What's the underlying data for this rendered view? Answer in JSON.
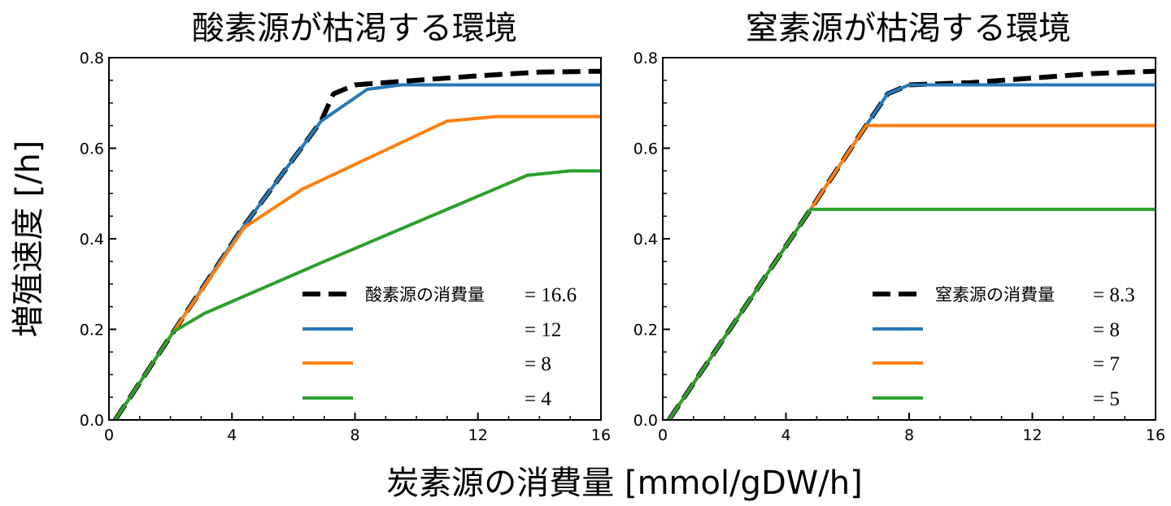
{
  "chart_data": [
    {
      "type": "line",
      "title": "酸素源が枯渇する環境",
      "xlabel": "炭素源の消費量 [mmol/gDW/h]",
      "ylabel": "増殖速度 [/h]",
      "xlim": [
        0,
        16
      ],
      "ylim": [
        0,
        0.8
      ],
      "xticks": [
        0,
        4,
        8,
        12,
        16
      ],
      "xtick_labels": [
        "0",
        "4",
        "8",
        "12",
        "16"
      ],
      "xminor_step": 1,
      "yticks": [
        0.0,
        0.2,
        0.4,
        0.6,
        0.8
      ],
      "ytick_labels": [
        "0.0",
        "0.2",
        "0.4",
        "0.6",
        "0.8"
      ],
      "yminor_step": 0.05,
      "grid": false,
      "legend_position": "bottom-right",
      "series": [
        {
          "name": "酸素源の消費量",
          "value_label": "= 16.6",
          "color": "#000000",
          "style": "dashed",
          "x": [
            0.2,
            2.1,
            4.3,
            6.9,
            7.3,
            8.0,
            10.0,
            12.0,
            14.0,
            16.0
          ],
          "y": [
            0.0,
            0.195,
            0.42,
            0.66,
            0.72,
            0.74,
            0.75,
            0.76,
            0.768,
            0.77
          ]
        },
        {
          "name": "",
          "value_label": "= 12",
          "color": "#2878b5",
          "style": "solid",
          "x": [
            0.2,
            2.1,
            4.3,
            6.9,
            8.4,
            9.5,
            16.0
          ],
          "y": [
            0.0,
            0.195,
            0.42,
            0.66,
            0.73,
            0.74,
            0.74
          ]
        },
        {
          "name": "",
          "value_label": "= 8",
          "color": "#ff7f0e",
          "style": "solid",
          "x": [
            0.2,
            2.1,
            4.4,
            6.3,
            11.0,
            12.6,
            16.0
          ],
          "y": [
            0.0,
            0.195,
            0.425,
            0.51,
            0.66,
            0.67,
            0.67
          ]
        },
        {
          "name": "",
          "value_label": "= 4",
          "color": "#2ca02c",
          "style": "solid",
          "x": [
            0.2,
            2.1,
            3.1,
            7.0,
            13.6,
            15.0,
            16.0
          ],
          "y": [
            0.0,
            0.195,
            0.235,
            0.35,
            0.54,
            0.55,
            0.55
          ]
        }
      ]
    },
    {
      "type": "line",
      "title": "窒素源が枯渇する環境",
      "xlabel": "炭素源の消費量 [mmol/gDW/h]",
      "ylabel": "増殖速度 [/h]",
      "xlim": [
        0,
        16
      ],
      "ylim": [
        0,
        0.8
      ],
      "xticks": [
        0,
        4,
        8,
        12,
        16
      ],
      "xtick_labels": [
        "0",
        "4",
        "8",
        "12",
        "16"
      ],
      "xminor_step": 1,
      "yticks": [
        0.0,
        0.2,
        0.4,
        0.6,
        0.8
      ],
      "ytick_labels": [
        "0.0",
        "0.2",
        "0.4",
        "0.6",
        "0.8"
      ],
      "yminor_step": 0.05,
      "grid": false,
      "legend_position": "bottom-right",
      "series": [
        {
          "name": "窒素源の消費量",
          "value_label": "= 8.3",
          "color": "#000000",
          "style": "dashed",
          "x": [
            0.2,
            4.8,
            6.6,
            7.3,
            8.0,
            10.0,
            12.0,
            14.0,
            16.0
          ],
          "y": [
            0.0,
            0.465,
            0.65,
            0.72,
            0.74,
            0.745,
            0.755,
            0.765,
            0.77
          ]
        },
        {
          "name": "",
          "value_label": "= 8",
          "color": "#2878b5",
          "style": "solid",
          "x": [
            0.2,
            4.8,
            6.6,
            7.3,
            8.0,
            16.0
          ],
          "y": [
            0.0,
            0.465,
            0.65,
            0.72,
            0.74,
            0.74
          ]
        },
        {
          "name": "",
          "value_label": "= 7",
          "color": "#ff7f0e",
          "style": "solid",
          "x": [
            0.2,
            4.8,
            6.6,
            16.0
          ],
          "y": [
            0.0,
            0.465,
            0.65,
            0.65
          ]
        },
        {
          "name": "",
          "value_label": "= 5",
          "color": "#2ca02c",
          "style": "solid",
          "x": [
            0.2,
            4.8,
            16.0
          ],
          "y": [
            0.0,
            0.465,
            0.465
          ]
        }
      ]
    }
  ],
  "figure": {
    "shared_xlabel": "炭素源の消費量 [mmol/gDW/h]",
    "shared_ylabel": "増殖速度 [/h]"
  }
}
